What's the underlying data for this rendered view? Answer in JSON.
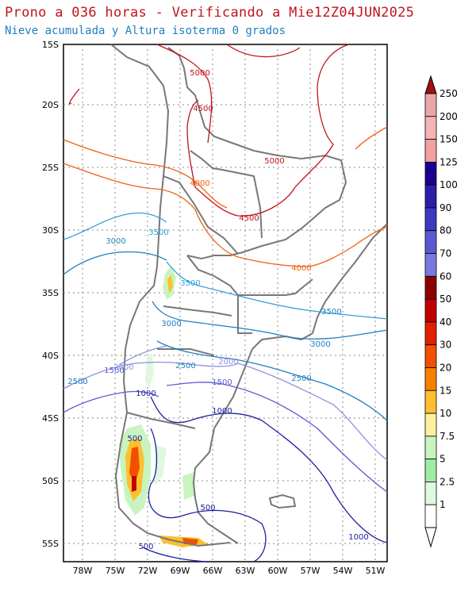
{
  "title": "Prono a 036 horas - Verificando a Mie12Z04JUN2025",
  "subtitle": "Nieve acumulada y Altura isoterma 0 grados",
  "lat_ticks": [
    "15S",
    "20S",
    "25S",
    "30S",
    "35S",
    "40S",
    "45S",
    "50S",
    "55S"
  ],
  "lon_ticks": [
    "78W",
    "75W",
    "72W",
    "69W",
    "66W",
    "63W",
    "60W",
    "57W",
    "54W",
    "51W"
  ],
  "colorbar": {
    "levels": [
      "250",
      "200",
      "150",
      "125",
      "100",
      "90",
      "80",
      "70",
      "60",
      "50",
      "40",
      "30",
      "20",
      "15",
      "10",
      "7.5",
      "5",
      "2.5",
      "1"
    ],
    "colors": [
      "#e8a8a8",
      "#f4b4b4",
      "#f2a0a0",
      "#1a0090",
      "#2a20a8",
      "#3a3ac0",
      "#5a5ad0",
      "#7878e0",
      "#8c0000",
      "#c00000",
      "#e02000",
      "#f05000",
      "#f88000",
      "#fcc030",
      "#fcf0a0",
      "#c8f4c0",
      "#a0eca0",
      "#e0f8e0",
      "#ffffff"
    ],
    "top_arrow_color": "#a01010",
    "bottom_arrow_color": "#ffffff"
  },
  "contour_labels": [
    {
      "text": "5000",
      "color": "#c0141c"
    },
    {
      "text": "4500",
      "color": "#c0141c"
    },
    {
      "text": "5000",
      "color": "#c0141c"
    },
    {
      "text": "4500",
      "color": "#c0141c"
    },
    {
      "text": "4000",
      "color": "#f06010"
    },
    {
      "text": "4000",
      "color": "#f06010"
    },
    {
      "text": "3500",
      "color": "#30a0d8"
    },
    {
      "text": "3000",
      "color": "#1f7fc0"
    },
    {
      "text": "3500",
      "color": "#30a0d8"
    },
    {
      "text": "3000",
      "color": "#1f7fc0"
    },
    {
      "text": "3500",
      "color": "#1f7fc0"
    },
    {
      "text": "3000",
      "color": "#1f7fc0"
    },
    {
      "text": "2500",
      "color": "#1f7fc0"
    },
    {
      "text": "2500",
      "color": "#1f7fc0"
    },
    {
      "text": "2500",
      "color": "#1f7fc0"
    },
    {
      "text": "2000",
      "color": "#9090e0"
    },
    {
      "text": "2000",
      "color": "#9090e0"
    },
    {
      "text": "1500",
      "color": "#5a5ad0"
    },
    {
      "text": "1500",
      "color": "#5a5ad0"
    },
    {
      "text": "1000",
      "color": "#2020a0"
    },
    {
      "text": "1000",
      "color": "#2020a0"
    },
    {
      "text": "500",
      "color": "#2020a0"
    },
    {
      "text": "500",
      "color": "#2020a0"
    },
    {
      "text": "1000",
      "color": "#2020a0"
    },
    {
      "text": "500",
      "color": "#2020a0"
    }
  ]
}
